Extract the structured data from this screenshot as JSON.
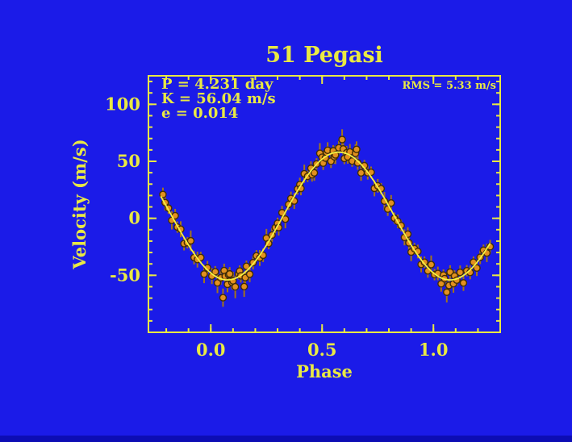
{
  "window": {
    "description": "Radial velocity phase plot of the star 51 Pegasi"
  },
  "chart_data": {
    "type": "scatter",
    "title": "51 Pegasi",
    "xlabel": "Phase",
    "ylabel": "Velocity  (m/s)",
    "xlim": [
      -0.28,
      1.3
    ],
    "ylim": [
      -100,
      125
    ],
    "grid": false,
    "legend": "none",
    "x_major_ticks": [
      0.0,
      0.5,
      1.0
    ],
    "x_tick_labels": [
      "0.0",
      "0.5",
      "1.0"
    ],
    "x_minor_step": 0.1,
    "y_major_ticks": [
      -50,
      0,
      50,
      100
    ],
    "y_tick_labels": [
      "-50",
      "0",
      "50",
      "100"
    ],
    "y_minor_step": 10,
    "annotations": {
      "period": "P = 4.231 day",
      "amplitude": "K = 56.04 m/s",
      "eccentricity": "e = 0.014",
      "rms": "RMS = 5.33 m/s"
    },
    "fit_curve": {
      "model": "keplerian-sinusoid",
      "gamma_ms": 2.0,
      "K_ms": 56.04,
      "phase_of_minimum": 0.075,
      "phase_range": [
        -0.225,
        1.255
      ]
    },
    "colors": {
      "background": "#1b1be8",
      "foreground": "#e9e943",
      "curve": "#f4f243",
      "marker_fill": "#e2901e",
      "marker_outline": "#402d05",
      "error_bar": "#a2741c",
      "bottom_edge": "#0d0db4"
    },
    "points_format": [
      "phase",
      "velocity_ms",
      "sigma_ms"
    ],
    "points": [
      [
        -0.215,
        20.9,
        6
      ],
      [
        -0.205,
        13.8,
        7
      ],
      [
        -0.19,
        8.9,
        5
      ],
      [
        -0.175,
        -1.8,
        8
      ],
      [
        -0.16,
        2.3,
        6
      ],
      [
        -0.15,
        -7.7,
        5
      ],
      [
        -0.135,
        -9.6,
        7
      ],
      [
        -0.12,
        -22.2,
        6
      ],
      [
        -0.105,
        -21.4,
        5
      ],
      [
        -0.09,
        -19.7,
        9
      ],
      [
        -0.075,
        -34.4,
        6
      ],
      [
        -0.06,
        -36.2,
        7
      ],
      [
        -0.045,
        -34.4,
        5
      ],
      [
        -0.03,
        -48.9,
        8
      ],
      [
        -0.015,
        -43.4,
        6
      ],
      [
        0.005,
        -50.7,
        7
      ],
      [
        0.02,
        -46.9,
        5
      ],
      [
        0.03,
        -56.6,
        9
      ],
      [
        0.045,
        -52.2,
        6
      ],
      [
        0.055,
        -69.6,
        8
      ],
      [
        0.06,
        -45.8,
        6
      ],
      [
        0.065,
        -50.9,
        5
      ],
      [
        0.075,
        -57.9,
        7
      ],
      [
        0.08,
        -49.5,
        5
      ],
      [
        0.085,
        -48.8,
        6
      ],
      [
        0.095,
        -56.2,
        6
      ],
      [
        0.1,
        -54.9,
        8
      ],
      [
        0.11,
        -60.1,
        10
      ],
      [
        0.125,
        -48.7,
        5
      ],
      [
        0.13,
        -46.3,
        5
      ],
      [
        0.135,
        -50.4,
        6
      ],
      [
        0.15,
        -59.9,
        9
      ],
      [
        0.155,
        -52.0,
        6
      ],
      [
        0.16,
        -42.1,
        5
      ],
      [
        0.175,
        -49.0,
        7
      ],
      [
        0.19,
        -38.9,
        6
      ],
      [
        0.205,
        -32.9,
        5
      ],
      [
        0.22,
        -34.8,
        7
      ],
      [
        0.235,
        -32.4,
        6
      ],
      [
        0.25,
        -17.3,
        8
      ],
      [
        0.26,
        -22.1,
        5
      ],
      [
        0.275,
        -14.7,
        6
      ],
      [
        0.29,
        -8.1,
        5
      ],
      [
        0.3,
        -4.4,
        5
      ],
      [
        0.305,
        -8.1,
        7
      ],
      [
        0.32,
        4.9,
        6
      ],
      [
        0.335,
        -0.7,
        8
      ],
      [
        0.35,
        12.2,
        5
      ],
      [
        0.36,
        17.4,
        6
      ],
      [
        0.375,
        15.2,
        7
      ],
      [
        0.39,
        25.7,
        5
      ],
      [
        0.4,
        29.6,
        6
      ],
      [
        0.405,
        26.2,
        6
      ],
      [
        0.42,
        39.1,
        8
      ],
      [
        0.435,
        36.8,
        5
      ],
      [
        0.45,
        43.9,
        6
      ],
      [
        0.455,
        38.2,
        6
      ],
      [
        0.465,
        39.9,
        7
      ],
      [
        0.475,
        47.7,
        5
      ],
      [
        0.49,
        57.0,
        9
      ],
      [
        0.5,
        53.6,
        5
      ],
      [
        0.505,
        48.4,
        6
      ],
      [
        0.515,
        52.9,
        5
      ],
      [
        0.52,
        57.8,
        5
      ],
      [
        0.525,
        59.7,
        7
      ],
      [
        0.54,
        50.1,
        6
      ],
      [
        0.55,
        59.2,
        5
      ],
      [
        0.555,
        54.0,
        6
      ],
      [
        0.56,
        55.6,
        8
      ],
      [
        0.575,
        61.8,
        6
      ],
      [
        0.59,
        69.1,
        9
      ],
      [
        0.595,
        60.8,
        5
      ],
      [
        0.6,
        52.5,
        5
      ],
      [
        0.61,
        57.5,
        6
      ],
      [
        0.615,
        53.9,
        6
      ],
      [
        0.625,
        58.2,
        7
      ],
      [
        0.635,
        50.2,
        5
      ],
      [
        0.65,
        57.0,
        8
      ],
      [
        0.655,
        60.5,
        7
      ],
      [
        0.66,
        48.6,
        6
      ],
      [
        0.675,
        39.9,
        7
      ],
      [
        0.69,
        46.2,
        5
      ],
      [
        0.705,
        40.0,
        6
      ],
      [
        0.72,
        40.4,
        5
      ],
      [
        0.735,
        26.3,
        7
      ],
      [
        0.75,
        28.5,
        6
      ],
      [
        0.765,
        26.0,
        5
      ],
      [
        0.78,
        15.1,
        8
      ],
      [
        0.795,
        8.1,
        6
      ],
      [
        0.81,
        13.4,
        7
      ],
      [
        0.825,
        0.1,
        5
      ],
      [
        0.84,
        -2.7,
        6
      ],
      [
        0.855,
        -6.4,
        5
      ],
      [
        0.87,
        -16.7,
        7
      ],
      [
        0.885,
        -13.9,
        6
      ],
      [
        0.89,
        -21.5,
        6
      ],
      [
        0.9,
        -29.6,
        8
      ],
      [
        0.915,
        -26.6,
        5
      ],
      [
        0.93,
        -29.1,
        6
      ],
      [
        0.945,
        -40.4,
        7
      ],
      [
        0.96,
        -38.5,
        5
      ],
      [
        0.975,
        -46.1,
        6
      ],
      [
        0.99,
        -40.6,
        8
      ],
      [
        1.005,
        -49.4,
        5
      ],
      [
        1.02,
        -48.4,
        6
      ],
      [
        1.035,
        -57.4,
        7
      ],
      [
        1.045,
        -49.8,
        5
      ],
      [
        1.05,
        -52.9,
        5
      ],
      [
        1.06,
        -64.8,
        9
      ],
      [
        1.07,
        -58.9,
        6
      ],
      [
        1.075,
        -47.2,
        6
      ],
      [
        1.09,
        -57.3,
        8
      ],
      [
        1.095,
        -50.6,
        5
      ],
      [
        1.105,
        -54.2,
        5
      ],
      [
        1.12,
        -47.4,
        6
      ],
      [
        1.135,
        -56.7,
        7
      ],
      [
        1.15,
        -46.0,
        5
      ],
      [
        1.165,
        -47.5,
        6
      ],
      [
        1.18,
        -38.5,
        5
      ],
      [
        1.195,
        -43.6,
        7
      ],
      [
        1.21,
        -34.2,
        6
      ],
      [
        1.225,
        -28.0,
        5
      ],
      [
        1.24,
        -30.4,
        8
      ],
      [
        1.255,
        -24.9,
        6
      ]
    ]
  }
}
